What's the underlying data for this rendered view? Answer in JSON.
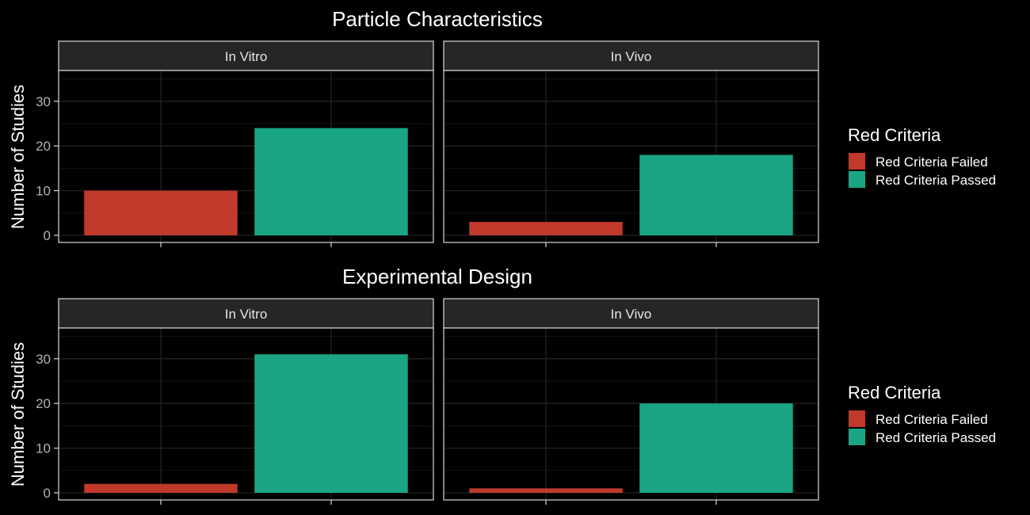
{
  "chart_data": [
    {
      "type": "bar",
      "title": "Particle Characteristics",
      "ylabel": "Number of Studies",
      "xlabel": "",
      "ylim": [
        0,
        37
      ],
      "yticks": [
        0,
        10,
        20,
        30
      ],
      "grid": true,
      "legend": {
        "title": "Red Criteria",
        "position": "right",
        "entries": [
          {
            "label": "Red Criteria Failed",
            "color": "#c0392b"
          },
          {
            "label": "Red Criteria Passed",
            "color": "#1aa585"
          }
        ]
      },
      "categories": [
        "Red Criteria Failed",
        "Red Criteria Passed"
      ],
      "facets": [
        {
          "name": "In Vitro",
          "values": [
            10,
            24
          ]
        },
        {
          "name": "In Vivo",
          "values": [
            3,
            18
          ]
        }
      ]
    },
    {
      "type": "bar",
      "title": "Experimental Design",
      "ylabel": "Number of Studies",
      "xlabel": "",
      "ylim": [
        0,
        37
      ],
      "yticks": [
        0,
        10,
        20,
        30
      ],
      "grid": true,
      "legend": {
        "title": "Red Criteria",
        "position": "right",
        "entries": [
          {
            "label": "Red Criteria Failed",
            "color": "#c0392b"
          },
          {
            "label": "Red Criteria Passed",
            "color": "#1aa585"
          }
        ]
      },
      "categories": [
        "Red Criteria Failed",
        "Red Criteria Passed"
      ],
      "facets": [
        {
          "name": "In Vitro",
          "values": [
            2,
            31
          ]
        },
        {
          "name": "In Vivo",
          "values": [
            1,
            20
          ]
        }
      ]
    }
  ]
}
